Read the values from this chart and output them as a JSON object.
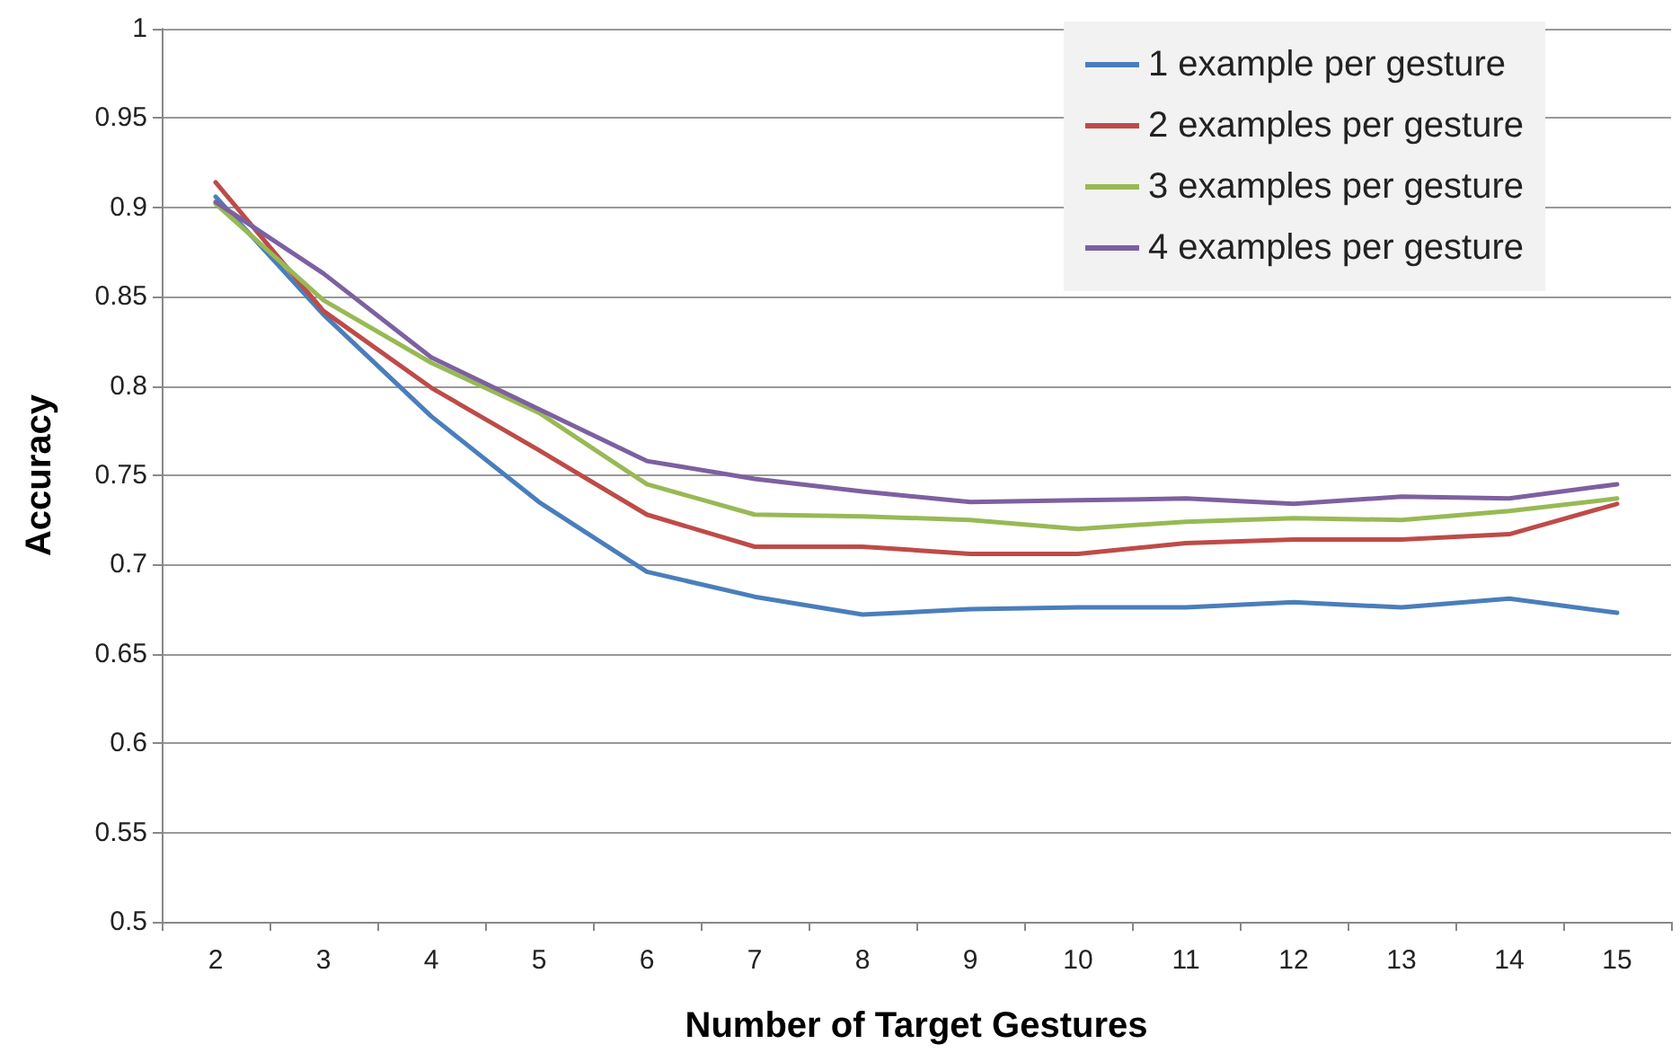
{
  "chart_data": {
    "type": "line",
    "xlabel": "Number of Target Gestures",
    "ylabel": "Accuracy",
    "categories": [
      "2",
      "3",
      "4",
      "5",
      "6",
      "7",
      "8",
      "9",
      "10",
      "11",
      "12",
      "13",
      "14",
      "15"
    ],
    "ylim": [
      0.5,
      1
    ],
    "yticks": [
      0.5,
      0.55,
      0.6,
      0.65,
      0.7,
      0.75,
      0.8,
      0.85,
      0.9,
      0.95,
      1
    ],
    "grid": "y",
    "legend": "top right",
    "marker": "none",
    "series": [
      {
        "name": "1 example per gesture",
        "color": "#4a7ebb",
        "values": [
          0.906,
          0.84,
          0.783,
          0.735,
          0.696,
          0.682,
          0.672,
          0.675,
          0.676,
          0.676,
          0.679,
          0.676,
          0.681,
          0.673
        ]
      },
      {
        "name": "2 examples per gesture",
        "color": "#be4b48",
        "values": [
          0.914,
          0.842,
          0.799,
          0.764,
          0.728,
          0.71,
          0.71,
          0.706,
          0.706,
          0.712,
          0.714,
          0.714,
          0.717,
          0.734
        ]
      },
      {
        "name": "3 examples per gesture",
        "color": "#98b954",
        "values": [
          0.902,
          0.848,
          0.813,
          0.785,
          0.745,
          0.728,
          0.727,
          0.725,
          0.72,
          0.724,
          0.726,
          0.725,
          0.73,
          0.737
        ]
      },
      {
        "name": "4 examples per gesture",
        "color": "#7d60a0",
        "values": [
          0.903,
          0.863,
          0.816,
          0.787,
          0.758,
          0.748,
          0.741,
          0.735,
          0.736,
          0.737,
          0.734,
          0.738,
          0.737,
          0.745
        ]
      }
    ]
  }
}
